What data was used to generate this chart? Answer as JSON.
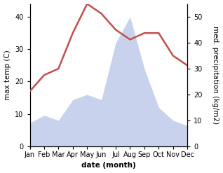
{
  "months": [
    "Jan",
    "Feb",
    "Mar",
    "Apr",
    "May",
    "Jun",
    "Jul",
    "Aug",
    "Sep",
    "Oct",
    "Nov",
    "Dec"
  ],
  "temperature": [
    17,
    22,
    24,
    35,
    44,
    41,
    36,
    33,
    35,
    35,
    28,
    25
  ],
  "precipitation": [
    9,
    12,
    10,
    18,
    20,
    18,
    40,
    50,
    30,
    15,
    10,
    8
  ],
  "temp_color": "#c0504d",
  "precip_color": "#b8c4e8",
  "ylabel_left": "max temp (C)",
  "ylabel_right": "med. precipitation (kg/m2)",
  "xlabel": "date (month)",
  "ylim_left": [
    0,
    44
  ],
  "ylim_right": [
    0,
    55
  ],
  "yticks_left": [
    0,
    10,
    20,
    30,
    40
  ],
  "yticks_right": [
    0,
    10,
    20,
    30,
    40,
    50
  ],
  "background_color": "#ffffff",
  "label_fontsize": 7.5,
  "tick_fontsize": 7
}
